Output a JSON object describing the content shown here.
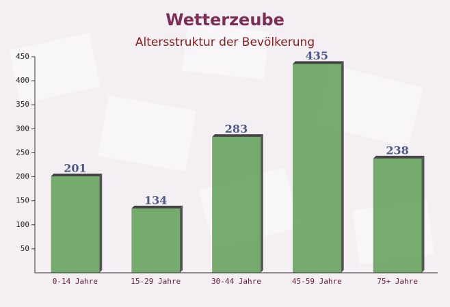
{
  "chart_data": {
    "type": "bar",
    "title": "Wetterzeube",
    "subtitle": "Altersstruktur der Bevölkerung",
    "categories": [
      "0-14 Jahre",
      "15-29 Jahre",
      "30-44 Jahre",
      "45-59 Jahre",
      "75+ Jahre"
    ],
    "values": [
      201,
      134,
      283,
      435,
      238
    ],
    "color": "#6aa561",
    "ylim": [
      0,
      450
    ],
    "yticks": [
      50,
      100,
      150,
      200,
      250,
      300,
      350,
      400,
      450
    ],
    "grid": false
  }
}
